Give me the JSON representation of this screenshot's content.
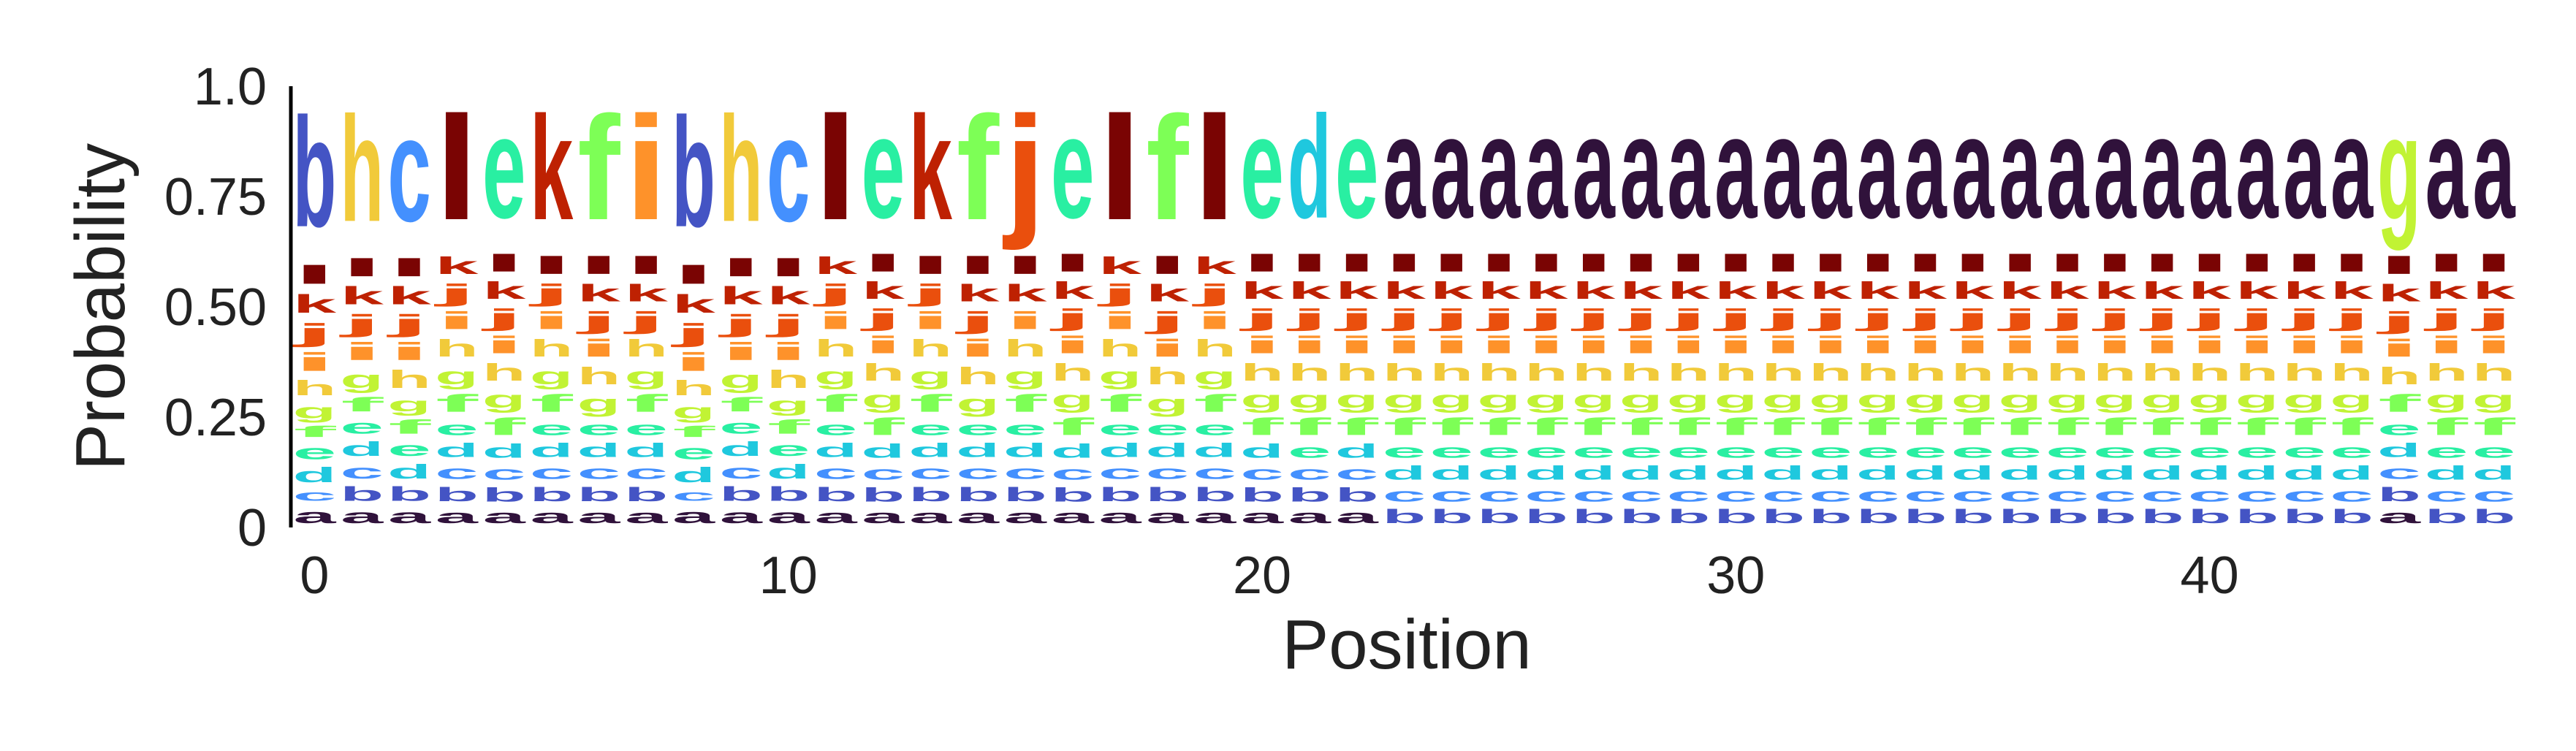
{
  "chart_data": {
    "type": "sequence-logo",
    "xlabel": "Position",
    "ylabel": "Probability",
    "xlim": [
      -0.5,
      46.5
    ],
    "ylim": [
      0,
      1
    ],
    "x_ticks": [
      0,
      10,
      20,
      30,
      40
    ],
    "x_tick_labels": [
      "0",
      "10",
      "20",
      "30",
      "40"
    ],
    "y_ticks": [
      0,
      0.25,
      0.5,
      0.75,
      1.0
    ],
    "y_tick_labels": [
      "0",
      "0.25",
      "0.50",
      "0.75",
      "1.0"
    ],
    "grid": false,
    "alphabet": [
      "a",
      "b",
      "c",
      "d",
      "e",
      "f",
      "g",
      "h",
      "i",
      "j",
      "k",
      "l"
    ],
    "colors": {
      "a": "#30123b",
      "b": "#4454c4",
      "c": "#4490fe",
      "d": "#1fc8de",
      "e": "#29efa2",
      "f": "#7dff56",
      "g": "#c1f334",
      "h": "#f1ca3a",
      "i": "#fe922a",
      "j": "#ea4f0d",
      "k": "#be2102",
      "l": "#7a0403"
    },
    "top_letters": [
      "b",
      "h",
      "c",
      "l",
      "e",
      "k",
      "f",
      "i",
      "b",
      "h",
      "c",
      "l",
      "e",
      "k",
      "f",
      "j",
      "e",
      "l",
      "f",
      "l",
      "e",
      "d",
      "e",
      "a",
      "a",
      "a",
      "a",
      "a",
      "a",
      "a",
      "a",
      "a",
      "a",
      "a",
      "a",
      "a",
      "a",
      "a",
      "a",
      "a",
      "a",
      "a",
      "a",
      "a",
      "g",
      "a",
      "a"
    ],
    "positions": [
      {
        "a": 0.04,
        "b": 0.3,
        "c": 0.03,
        "d": 0.04,
        "e": 0.04,
        "f": 0.03,
        "g": 0.04,
        "h": 0.04,
        "i": 0.05,
        "j": 0.05,
        "k": 0.05,
        "l": 0.05
      },
      {
        "a": 0.04,
        "b": 0.04,
        "c": 0.04,
        "d": 0.04,
        "e": 0.04,
        "f": 0.04,
        "g": 0.05,
        "h": 0.3,
        "i": 0.05,
        "j": 0.05,
        "k": 0.05,
        "l": 0.05
      },
      {
        "a": 0.04,
        "b": 0.04,
        "c": 0.3,
        "d": 0.04,
        "e": 0.04,
        "f": 0.04,
        "g": 0.04,
        "h": 0.05,
        "i": 0.05,
        "j": 0.05,
        "k": 0.05,
        "l": 0.05
      },
      {
        "a": 0.04,
        "b": 0.04,
        "c": 0.04,
        "d": 0.04,
        "e": 0.04,
        "f": 0.05,
        "g": 0.05,
        "h": 0.05,
        "i": 0.05,
        "j": 0.05,
        "k": 0.05,
        "l": 0.3
      },
      {
        "a": 0.04,
        "b": 0.04,
        "c": 0.04,
        "d": 0.04,
        "e": 0.3,
        "f": 0.05,
        "g": 0.05,
        "h": 0.05,
        "i": 0.05,
        "j": 0.05,
        "k": 0.05,
        "l": 0.05
      },
      {
        "a": 0.04,
        "b": 0.04,
        "c": 0.04,
        "d": 0.04,
        "e": 0.04,
        "f": 0.05,
        "g": 0.05,
        "h": 0.05,
        "i": 0.05,
        "j": 0.05,
        "k": 0.3,
        "l": 0.05
      },
      {
        "a": 0.04,
        "b": 0.04,
        "c": 0.04,
        "d": 0.04,
        "e": 0.04,
        "f": 0.3,
        "g": 0.05,
        "h": 0.05,
        "i": 0.05,
        "j": 0.05,
        "k": 0.05,
        "l": 0.05
      },
      {
        "a": 0.04,
        "b": 0.04,
        "c": 0.04,
        "d": 0.04,
        "e": 0.04,
        "f": 0.05,
        "g": 0.05,
        "h": 0.05,
        "i": 0.3,
        "j": 0.05,
        "k": 0.05,
        "l": 0.05
      },
      {
        "a": 0.04,
        "b": 0.3,
        "c": 0.03,
        "d": 0.04,
        "e": 0.04,
        "f": 0.03,
        "g": 0.04,
        "h": 0.04,
        "i": 0.05,
        "j": 0.05,
        "k": 0.05,
        "l": 0.05
      },
      {
        "a": 0.04,
        "b": 0.04,
        "c": 0.04,
        "d": 0.04,
        "e": 0.04,
        "f": 0.04,
        "g": 0.05,
        "h": 0.3,
        "i": 0.05,
        "j": 0.05,
        "k": 0.05,
        "l": 0.05
      },
      {
        "a": 0.04,
        "b": 0.04,
        "c": 0.3,
        "d": 0.04,
        "e": 0.04,
        "f": 0.04,
        "g": 0.04,
        "h": 0.05,
        "i": 0.05,
        "j": 0.05,
        "k": 0.05,
        "l": 0.05
      },
      {
        "a": 0.04,
        "b": 0.04,
        "c": 0.04,
        "d": 0.04,
        "e": 0.04,
        "f": 0.05,
        "g": 0.05,
        "h": 0.05,
        "i": 0.05,
        "j": 0.05,
        "k": 0.05,
        "l": 0.3
      },
      {
        "a": 0.04,
        "b": 0.04,
        "c": 0.04,
        "d": 0.04,
        "e": 0.3,
        "f": 0.05,
        "g": 0.05,
        "h": 0.05,
        "i": 0.05,
        "j": 0.05,
        "k": 0.05,
        "l": 0.05
      },
      {
        "a": 0.04,
        "b": 0.04,
        "c": 0.04,
        "d": 0.04,
        "e": 0.04,
        "f": 0.05,
        "g": 0.05,
        "h": 0.05,
        "i": 0.05,
        "j": 0.05,
        "k": 0.3,
        "l": 0.05
      },
      {
        "a": 0.04,
        "b": 0.04,
        "c": 0.04,
        "d": 0.04,
        "e": 0.04,
        "f": 0.3,
        "g": 0.05,
        "h": 0.05,
        "i": 0.05,
        "j": 0.05,
        "k": 0.05,
        "l": 0.05
      },
      {
        "a": 0.04,
        "b": 0.04,
        "c": 0.04,
        "d": 0.04,
        "e": 0.04,
        "f": 0.05,
        "g": 0.05,
        "h": 0.05,
        "i": 0.05,
        "j": 0.3,
        "k": 0.05,
        "l": 0.05
      },
      {
        "a": 0.04,
        "b": 0.04,
        "c": 0.04,
        "d": 0.04,
        "e": 0.3,
        "f": 0.05,
        "g": 0.05,
        "h": 0.05,
        "i": 0.05,
        "j": 0.05,
        "k": 0.05,
        "l": 0.05
      },
      {
        "a": 0.04,
        "b": 0.04,
        "c": 0.04,
        "d": 0.04,
        "e": 0.04,
        "f": 0.05,
        "g": 0.05,
        "h": 0.05,
        "i": 0.05,
        "j": 0.05,
        "k": 0.05,
        "l": 0.3
      },
      {
        "a": 0.04,
        "b": 0.04,
        "c": 0.04,
        "d": 0.04,
        "e": 0.04,
        "f": 0.3,
        "g": 0.05,
        "h": 0.05,
        "i": 0.05,
        "j": 0.05,
        "k": 0.05,
        "l": 0.05
      },
      {
        "a": 0.04,
        "b": 0.04,
        "c": 0.04,
        "d": 0.04,
        "e": 0.04,
        "f": 0.05,
        "g": 0.05,
        "h": 0.05,
        "i": 0.05,
        "j": 0.05,
        "k": 0.05,
        "l": 0.3
      },
      {
        "a": 0.04,
        "b": 0.04,
        "c": 0.04,
        "d": 0.04,
        "e": 0.3,
        "f": 0.05,
        "g": 0.05,
        "h": 0.05,
        "i": 0.05,
        "j": 0.05,
        "k": 0.05,
        "l": 0.05
      },
      {
        "a": 0.04,
        "b": 0.04,
        "c": 0.04,
        "d": 0.3,
        "e": 0.04,
        "f": 0.05,
        "g": 0.05,
        "h": 0.05,
        "i": 0.05,
        "j": 0.05,
        "k": 0.05,
        "l": 0.05
      },
      {
        "a": 0.04,
        "b": 0.04,
        "c": 0.04,
        "d": 0.04,
        "e": 0.3,
        "f": 0.05,
        "g": 0.05,
        "h": 0.05,
        "i": 0.05,
        "j": 0.05,
        "k": 0.05,
        "l": 0.05
      },
      {
        "a": 0.3,
        "b": 0.04,
        "c": 0.04,
        "d": 0.04,
        "e": 0.04,
        "f": 0.05,
        "g": 0.05,
        "h": 0.05,
        "i": 0.05,
        "j": 0.05,
        "k": 0.05,
        "l": 0.05
      },
      {
        "a": 0.3,
        "b": 0.04,
        "c": 0.04,
        "d": 0.04,
        "e": 0.04,
        "f": 0.05,
        "g": 0.05,
        "h": 0.05,
        "i": 0.05,
        "j": 0.05,
        "k": 0.05,
        "l": 0.05
      },
      {
        "a": 0.3,
        "b": 0.04,
        "c": 0.04,
        "d": 0.04,
        "e": 0.04,
        "f": 0.05,
        "g": 0.05,
        "h": 0.05,
        "i": 0.05,
        "j": 0.05,
        "k": 0.05,
        "l": 0.05
      },
      {
        "a": 0.3,
        "b": 0.04,
        "c": 0.04,
        "d": 0.04,
        "e": 0.04,
        "f": 0.05,
        "g": 0.05,
        "h": 0.05,
        "i": 0.05,
        "j": 0.05,
        "k": 0.05,
        "l": 0.05
      },
      {
        "a": 0.3,
        "b": 0.04,
        "c": 0.04,
        "d": 0.04,
        "e": 0.04,
        "f": 0.05,
        "g": 0.05,
        "h": 0.05,
        "i": 0.05,
        "j": 0.05,
        "k": 0.05,
        "l": 0.05
      },
      {
        "a": 0.3,
        "b": 0.04,
        "c": 0.04,
        "d": 0.04,
        "e": 0.04,
        "f": 0.05,
        "g": 0.05,
        "h": 0.05,
        "i": 0.05,
        "j": 0.05,
        "k": 0.05,
        "l": 0.05
      },
      {
        "a": 0.3,
        "b": 0.04,
        "c": 0.04,
        "d": 0.04,
        "e": 0.04,
        "f": 0.05,
        "g": 0.05,
        "h": 0.05,
        "i": 0.05,
        "j": 0.05,
        "k": 0.05,
        "l": 0.05
      },
      {
        "a": 0.3,
        "b": 0.04,
        "c": 0.04,
        "d": 0.04,
        "e": 0.04,
        "f": 0.05,
        "g": 0.05,
        "h": 0.05,
        "i": 0.05,
        "j": 0.05,
        "k": 0.05,
        "l": 0.05
      },
      {
        "a": 0.3,
        "b": 0.04,
        "c": 0.04,
        "d": 0.04,
        "e": 0.04,
        "f": 0.05,
        "g": 0.05,
        "h": 0.05,
        "i": 0.05,
        "j": 0.05,
        "k": 0.05,
        "l": 0.05
      },
      {
        "a": 0.3,
        "b": 0.04,
        "c": 0.04,
        "d": 0.04,
        "e": 0.04,
        "f": 0.05,
        "g": 0.05,
        "h": 0.05,
        "i": 0.05,
        "j": 0.05,
        "k": 0.05,
        "l": 0.05
      },
      {
        "a": 0.3,
        "b": 0.04,
        "c": 0.04,
        "d": 0.04,
        "e": 0.04,
        "f": 0.05,
        "g": 0.05,
        "h": 0.05,
        "i": 0.05,
        "j": 0.05,
        "k": 0.05,
        "l": 0.05
      },
      {
        "a": 0.3,
        "b": 0.04,
        "c": 0.04,
        "d": 0.04,
        "e": 0.04,
        "f": 0.05,
        "g": 0.05,
        "h": 0.05,
        "i": 0.05,
        "j": 0.05,
        "k": 0.05,
        "l": 0.05
      },
      {
        "a": 0.3,
        "b": 0.04,
        "c": 0.04,
        "d": 0.04,
        "e": 0.04,
        "f": 0.05,
        "g": 0.05,
        "h": 0.05,
        "i": 0.05,
        "j": 0.05,
        "k": 0.05,
        "l": 0.05
      },
      {
        "a": 0.3,
        "b": 0.04,
        "c": 0.04,
        "d": 0.04,
        "e": 0.04,
        "f": 0.05,
        "g": 0.05,
        "h": 0.05,
        "i": 0.05,
        "j": 0.05,
        "k": 0.05,
        "l": 0.05
      },
      {
        "a": 0.3,
        "b": 0.04,
        "c": 0.04,
        "d": 0.04,
        "e": 0.04,
        "f": 0.05,
        "g": 0.05,
        "h": 0.05,
        "i": 0.05,
        "j": 0.05,
        "k": 0.05,
        "l": 0.05
      },
      {
        "a": 0.3,
        "b": 0.04,
        "c": 0.04,
        "d": 0.04,
        "e": 0.04,
        "f": 0.05,
        "g": 0.05,
        "h": 0.05,
        "i": 0.05,
        "j": 0.05,
        "k": 0.05,
        "l": 0.05
      },
      {
        "a": 0.3,
        "b": 0.04,
        "c": 0.04,
        "d": 0.04,
        "e": 0.04,
        "f": 0.05,
        "g": 0.05,
        "h": 0.05,
        "i": 0.05,
        "j": 0.05,
        "k": 0.05,
        "l": 0.05
      },
      {
        "a": 0.3,
        "b": 0.04,
        "c": 0.04,
        "d": 0.04,
        "e": 0.04,
        "f": 0.05,
        "g": 0.05,
        "h": 0.05,
        "i": 0.05,
        "j": 0.05,
        "k": 0.05,
        "l": 0.05
      },
      {
        "a": 0.3,
        "b": 0.04,
        "c": 0.04,
        "d": 0.04,
        "e": 0.04,
        "f": 0.05,
        "g": 0.05,
        "h": 0.05,
        "i": 0.05,
        "j": 0.05,
        "k": 0.05,
        "l": 0.05
      },
      {
        "a": 0.3,
        "b": 0.04,
        "c": 0.04,
        "d": 0.04,
        "e": 0.04,
        "f": 0.05,
        "g": 0.05,
        "h": 0.05,
        "i": 0.05,
        "j": 0.05,
        "k": 0.05,
        "l": 0.05
      },
      {
        "a": 0.3,
        "b": 0.04,
        "c": 0.04,
        "d": 0.04,
        "e": 0.04,
        "f": 0.05,
        "g": 0.05,
        "h": 0.05,
        "i": 0.05,
        "j": 0.05,
        "k": 0.05,
        "l": 0.05
      },
      {
        "a": 0.04,
        "b": 0.04,
        "c": 0.04,
        "d": 0.04,
        "e": 0.04,
        "f": 0.05,
        "g": 0.3,
        "h": 0.05,
        "i": 0.05,
        "j": 0.05,
        "k": 0.05,
        "l": 0.05
      },
      {
        "a": 0.3,
        "b": 0.04,
        "c": 0.04,
        "d": 0.04,
        "e": 0.04,
        "f": 0.05,
        "g": 0.05,
        "h": 0.05,
        "i": 0.05,
        "j": 0.05,
        "k": 0.05,
        "l": 0.05
      },
      {
        "a": 0.3,
        "b": 0.04,
        "c": 0.04,
        "d": 0.04,
        "e": 0.04,
        "f": 0.05,
        "g": 0.05,
        "h": 0.05,
        "i": 0.05,
        "j": 0.05,
        "k": 0.05,
        "l": 0.05
      }
    ]
  }
}
